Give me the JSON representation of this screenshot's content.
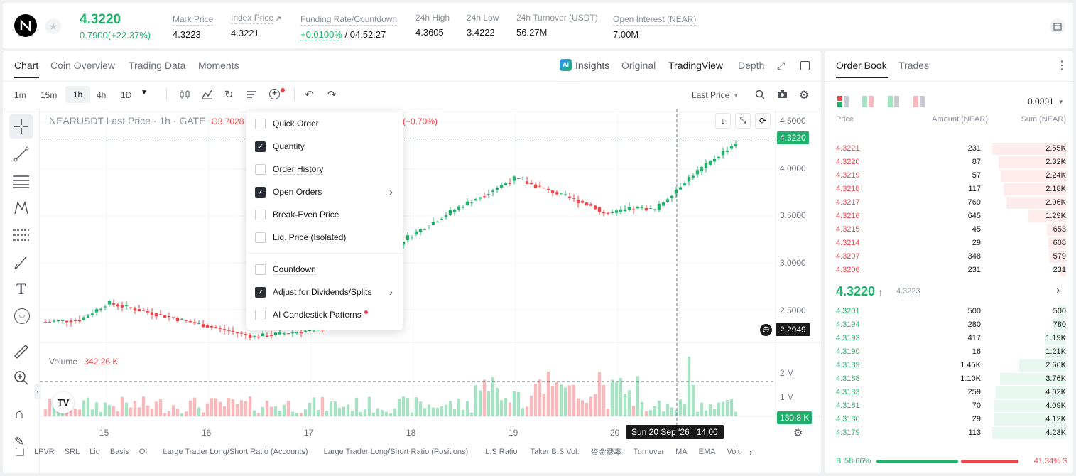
{
  "ticker": {
    "price": "4.3220",
    "change": "0.7900(+22.37%)",
    "stats": [
      {
        "label": "Mark Price",
        "value": "4.3223"
      },
      {
        "label": "Index Price",
        "value": "4.3221"
      },
      {
        "label": "Funding Rate/Countdown",
        "value_green": "+0.0100%",
        "value": " / 04:52:27"
      },
      {
        "label": "24h High",
        "value": "4.3605"
      },
      {
        "label": "24h Low",
        "value": "3.4222"
      },
      {
        "label": "24h Turnover (USDT)",
        "value": "56.27M"
      },
      {
        "label": "Open Interest (NEAR)",
        "value": "7.00M"
      }
    ]
  },
  "chart_tabs": [
    "Chart",
    "Coin Overview",
    "Trading Data",
    "Moments"
  ],
  "view_modes": {
    "insights": "Insights",
    "original": "Original",
    "tradingview": "TradingView",
    "depth": "Depth"
  },
  "intervals": [
    "1m",
    "15m",
    "1h",
    "4h",
    "1D"
  ],
  "price_source": "Last Price",
  "chart": {
    "legend_symbol": "NEARUSDT Last Price · 1h · GATE",
    "legend_open": "O3.7028",
    "legend_change": "(−0.70%)",
    "price_axis": [
      "4.5000",
      "4.0000",
      "3.5000",
      "3.0000",
      "2.5000"
    ],
    "last_price_tag": "4.3220",
    "crosshair_price": "2.2949",
    "crosshair_time": "Sun 20 Sep '26",
    "crosshair_hour": "14:00",
    "volume_label": "Volume",
    "volume_value": "342.26 K",
    "volume_axis": [
      "2 M",
      "1 M"
    ],
    "volume_tag": "130.8 K",
    "date_axis": [
      "15",
      "16",
      "17",
      "18",
      "19",
      "20"
    ]
  },
  "overlay_menu": [
    {
      "label": "Quick Order",
      "checked": false,
      "submenu": false
    },
    {
      "label": "Quantity",
      "checked": true,
      "submenu": false
    },
    {
      "label": "Order History",
      "checked": false,
      "submenu": false
    },
    {
      "label": "Open Orders",
      "checked": true,
      "submenu": true
    },
    {
      "label": "Break-Even Price",
      "checked": false,
      "submenu": false
    },
    {
      "label": "Liq. Price (Isolated)",
      "checked": false,
      "submenu": false
    },
    {
      "label": "Countdown",
      "checked": false,
      "submenu": false
    },
    {
      "label": "Adjust for Dividends/Splits",
      "checked": true,
      "submenu": true
    },
    {
      "label": "AI Candlestick Patterns",
      "checked": false,
      "submenu": false
    }
  ],
  "indicators": [
    "LPVR",
    "SRL",
    "Liq",
    "Basis",
    "OI",
    "Large Trader Long/Short Ratio (Accounts)",
    "Large Trader Long/Short Ratio (Positions)",
    "L.S Ratio",
    "Taker B.S Vol.",
    "资金费率",
    "Turnover",
    "MA",
    "EMA",
    "Volu"
  ],
  "orderbook": {
    "tabs": [
      "Order Book",
      "Trades"
    ],
    "precision": "0.0001",
    "headers": [
      "Price",
      "Amount (NEAR)",
      "Sum (NEAR)"
    ],
    "asks": [
      {
        "price": "4.3221",
        "amount": "231",
        "sum": "2.55K",
        "depth": 1.0
      },
      {
        "price": "4.3220",
        "amount": "87",
        "sum": "2.32K",
        "depth": 0.91
      },
      {
        "price": "4.3219",
        "amount": "57",
        "sum": "2.24K",
        "depth": 0.88
      },
      {
        "price": "4.3218",
        "amount": "117",
        "sum": "2.18K",
        "depth": 0.85
      },
      {
        "price": "4.3217",
        "amount": "769",
        "sum": "2.06K",
        "depth": 0.81
      },
      {
        "price": "4.3216",
        "amount": "645",
        "sum": "1.29K",
        "depth": 0.51
      },
      {
        "price": "4.3215",
        "amount": "45",
        "sum": "653",
        "depth": 0.26
      },
      {
        "price": "4.3214",
        "amount": "29",
        "sum": "608",
        "depth": 0.24
      },
      {
        "price": "4.3207",
        "amount": "348",
        "sum": "579",
        "depth": 0.23
      },
      {
        "price": "4.3206",
        "amount": "231",
        "sum": "231",
        "depth": 0.09
      }
    ],
    "mid_price": "4.3220",
    "mark_price": "4.3223",
    "bids": [
      {
        "price": "4.3201",
        "amount": "500",
        "sum": "500",
        "depth": 0.12
      },
      {
        "price": "4.3194",
        "amount": "280",
        "sum": "780",
        "depth": 0.18
      },
      {
        "price": "4.3193",
        "amount": "417",
        "sum": "1.19K",
        "depth": 0.28
      },
      {
        "price": "4.3190",
        "amount": "16",
        "sum": "1.21K",
        "depth": 0.29
      },
      {
        "price": "4.3189",
        "amount": "1.45K",
        "sum": "2.66K",
        "depth": 0.63
      },
      {
        "price": "4.3188",
        "amount": "1.10K",
        "sum": "3.76K",
        "depth": 0.89
      },
      {
        "price": "4.3183",
        "amount": "259",
        "sum": "4.02K",
        "depth": 0.95
      },
      {
        "price": "4.3181",
        "amount": "70",
        "sum": "4.09K",
        "depth": 0.97
      },
      {
        "price": "4.3180",
        "amount": "29",
        "sum": "4.12K",
        "depth": 0.97
      },
      {
        "price": "4.3179",
        "amount": "113",
        "sum": "4.23K",
        "depth": 1.0
      }
    ],
    "buy_label": "B",
    "buy_pct": "58.66%",
    "sell_label": "S",
    "sell_pct": "41.34%",
    "buy_ratio": 0.5866
  },
  "colors": {
    "up": "#20b26c",
    "down": "#ef454a",
    "up_soft": "#e7f6ee",
    "down_soft": "#fdeceb"
  },
  "icons": [
    "near-logo-icon",
    "star-icon",
    "calendar-icon",
    "candles-icon",
    "bar-icon",
    "line-icon",
    "undo-icon",
    "redo-icon",
    "search-icon",
    "camera-icon",
    "gear-icon"
  ]
}
